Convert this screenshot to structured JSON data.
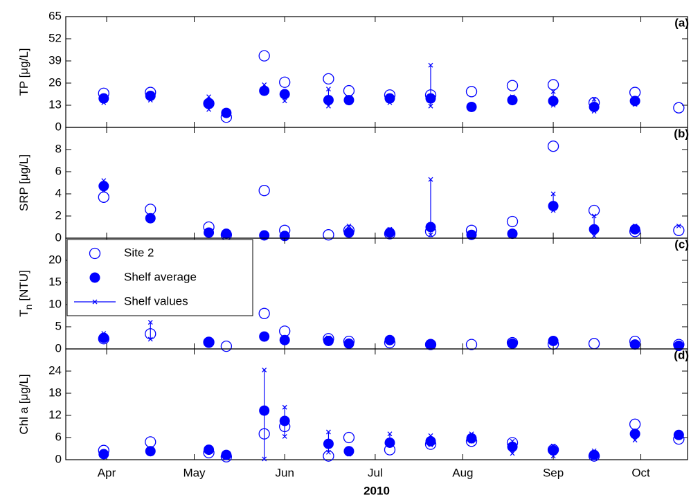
{
  "chart_data": [
    {
      "type": "scatter",
      "panel_label": "(a)",
      "ylabel": "TP [μg/L]",
      "x": [
        104,
        120,
        140,
        146,
        159,
        166,
        181,
        188,
        202,
        216,
        230,
        244,
        258,
        272,
        286,
        301
      ],
      "xlim": [
        91,
        304
      ],
      "ylim": [
        0,
        65
      ],
      "yticks": [
        0,
        13,
        26,
        39,
        52,
        65
      ],
      "series": [
        {
          "color": "#0000ff",
          "marker": "open-circle",
          "values": [
            20,
            20.5,
            14,
            6,
            42,
            26.5,
            28.5,
            21.5,
            19,
            19,
            21,
            24.5,
            25,
            14.5,
            20.5,
            11.5
          ]
        },
        {
          "color": "#0000ff",
          "marker": "filled-circle",
          "values": [
            17,
            18.5,
            14,
            8.5,
            21.5,
            19.5,
            16,
            16,
            17,
            17,
            12,
            16,
            15.5,
            12,
            15.5,
            null
          ]
        },
        {
          "color": "#0000ff",
          "marker": "x-line",
          "values": [
            [
              14.5,
              17
            ],
            [
              16,
              19
            ],
            [
              10.5,
              18
            ],
            [
              7,
              10
            ],
            [
              20,
              25
            ],
            [
              15.5,
              20
            ],
            [
              12.5,
              22.5
            ],
            [
              15,
              16.5
            ],
            [
              14.5,
              18
            ],
            [
              12.5,
              36.5
            ],
            [
              11.5,
              12.5
            ],
            [
              15,
              18
            ],
            [
              13,
              21
            ],
            [
              9.5,
              16.5
            ],
            [
              13.5,
              16.5
            ],
            null
          ]
        }
      ]
    },
    {
      "type": "scatter",
      "panel_label": "(b)",
      "ylabel": "SRP [μg/L]",
      "x": [
        104,
        120,
        140,
        146,
        159,
        166,
        181,
        188,
        202,
        216,
        230,
        244,
        258,
        272,
        286,
        301
      ],
      "xlim": [
        91,
        304
      ],
      "ylim": [
        0,
        10
      ],
      "yticks": [
        0,
        2,
        4,
        6,
        8
      ],
      "series": [
        {
          "color": "#0000ff",
          "marker": "open-circle",
          "values": [
            3.7,
            2.6,
            1.0,
            0.3,
            4.3,
            0.7,
            0.3,
            0.7,
            0.4,
            0.6,
            0.7,
            1.5,
            8.3,
            2.5,
            0.6,
            0.7
          ]
        },
        {
          "color": "#0000ff",
          "marker": "filled-circle",
          "values": [
            4.7,
            1.8,
            0.5,
            0.4,
            0.25,
            0.2,
            null,
            0.5,
            0.5,
            1.0,
            0.3,
            0.4,
            2.9,
            0.8,
            0.8,
            null
          ]
        },
        {
          "color": "#0000ff",
          "marker": "x-line",
          "values": [
            [
              4.3,
              5.2
            ],
            [
              1.6,
              1.9
            ],
            [
              0.3,
              0.6
            ],
            [
              0.2,
              0.5
            ],
            [
              0.2,
              0.3
            ],
            [
              0.15,
              0.3
            ],
            null,
            [
              0.3,
              1.1
            ],
            [
              0.3,
              0.8
            ],
            [
              0.3,
              5.3
            ],
            [
              0.2,
              0.4
            ],
            [
              0.3,
              0.5
            ],
            [
              2.5,
              4.0
            ],
            [
              0.2,
              2.0
            ],
            [
              0.6,
              1.1
            ],
            [
              1.1
            ]
          ]
        }
      ]
    },
    {
      "type": "scatter",
      "panel_label": "(c)",
      "ylabel": "T",
      "ylabel_sub": "n",
      "ylabel_rest": "[NTU]",
      "legend": "upper left",
      "x": [
        104,
        120,
        140,
        146,
        159,
        166,
        181,
        188,
        202,
        216,
        230,
        244,
        258,
        272,
        286,
        301
      ],
      "xlim": [
        91,
        304
      ],
      "ylim": [
        0,
        25
      ],
      "yticks": [
        0,
        5,
        10,
        15,
        20
      ],
      "series": [
        {
          "name": "Site 2",
          "color": "#0000ff",
          "marker": "open-circle",
          "values": [
            2.3,
            3.4,
            1.5,
            0.6,
            8,
            4,
            2.3,
            1.7,
            1.4,
            1,
            1,
            1.4,
            1.1,
            1.2,
            1.7,
            1.0
          ]
        },
        {
          "name": "Shelf average",
          "color": "#0000ff",
          "marker": "filled-circle",
          "values": [
            2.5,
            null,
            1.5,
            null,
            2.8,
            2,
            1.8,
            1.2,
            2,
            1,
            null,
            1.2,
            1.8,
            null,
            1.0,
            0.7
          ]
        },
        {
          "name": "Shelf values",
          "color": "#0000ff",
          "marker": "x-line",
          "values": [
            [
              2,
              3.5
            ],
            [
              2.2,
              6
            ],
            [
              1.3,
              1.8
            ],
            null,
            [
              2.2,
              3
            ],
            [
              1.7,
              2.3
            ],
            [
              1.5,
              2.5
            ],
            [
              1,
              1.7
            ],
            [
              1.5,
              2.5
            ],
            [
              0.8,
              1.2
            ],
            null,
            [
              1,
              1.5
            ],
            [
              1.5,
              2
            ],
            null,
            [
              0.8,
              1.2
            ],
            [
              0.5,
              1
            ]
          ]
        }
      ]
    },
    {
      "type": "scatter",
      "panel_label": "(d)",
      "ylabel": "Chl a [μg/L]",
      "xlabel": "2010",
      "x": [
        104,
        120,
        140,
        146,
        159,
        166,
        181,
        188,
        202,
        216,
        230,
        244,
        258,
        272,
        286,
        301
      ],
      "xlim": [
        91,
        304
      ],
      "ylim": [
        0,
        30
      ],
      "yticks": [
        0,
        6,
        12,
        18,
        24
      ],
      "xticks": [
        {
          "value": 105,
          "label": "Apr"
        },
        {
          "value": 135,
          "label": "May"
        },
        {
          "value": 166,
          "label": "Jun"
        },
        {
          "value": 197,
          "label": "Jul"
        },
        {
          "value": 227,
          "label": "Aug"
        },
        {
          "value": 258,
          "label": "Sep"
        },
        {
          "value": 288,
          "label": "Oct"
        }
      ],
      "series": [
        {
          "color": "#0000ff",
          "marker": "open-circle",
          "values": [
            2.5,
            4.8,
            1.9,
            0.8,
            7,
            9,
            1,
            6,
            2.7,
            4.2,
            5,
            4.6,
            2.7,
            1,
            9.6,
            5.6
          ]
        },
        {
          "color": "#0000ff",
          "marker": "filled-circle",
          "values": [
            1.5,
            2.3,
            2.7,
            1.3,
            13.3,
            10.5,
            4.3,
            2.3,
            4.6,
            5,
            5.8,
            3.5,
            2.5,
            1.3,
            7,
            6.7
          ]
        },
        {
          "color": "#0000ff",
          "marker": "x-line",
          "values": [
            [
              1,
              2
            ],
            [
              2,
              2.8
            ],
            [
              2.3,
              3
            ],
            [
              1,
              1.8
            ],
            [
              0.2,
              24.3
            ],
            [
              6.3,
              14.2
            ],
            [
              2,
              7.5
            ],
            [
              1.5,
              2.8
            ],
            [
              4,
              7
            ],
            [
              4,
              6.5
            ],
            [
              5,
              7
            ],
            [
              1.7,
              5
            ],
            [
              1,
              3.7
            ],
            [
              0.5,
              2.4
            ],
            [
              5.3,
              7
            ],
            [
              6.2,
              7
            ]
          ]
        }
      ]
    }
  ]
}
